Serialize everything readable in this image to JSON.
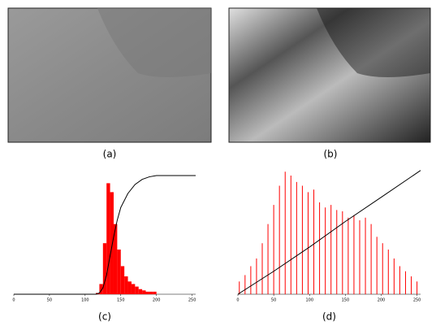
{
  "panels": [
    "(a)",
    "(b)"
  ],
  "chart_data": [
    {
      "type": "histogram",
      "caption": "(c)",
      "color": "#ff0000",
      "bins": [
        115,
        120,
        125,
        130,
        135,
        140,
        145,
        150,
        155,
        160,
        165,
        170,
        175,
        180,
        185,
        190,
        195,
        200
      ],
      "values": [
        1,
        8,
        40,
        87,
        80,
        55,
        35,
        22,
        14,
        10,
        8,
        6,
        4,
        3,
        2,
        2,
        2
      ],
      "xlim": [
        0,
        255
      ],
      "ylim": [
        0,
        100
      ],
      "xticks": [
        0,
        50,
        100,
        150,
        200,
        250
      ],
      "cumulative": {
        "color": "#000000",
        "x": [
          0,
          115,
          120,
          125,
          130,
          135,
          140,
          145,
          150,
          160,
          170,
          180,
          190,
          200,
          255
        ],
        "values": [
          0,
          0,
          1,
          5,
          15,
          30,
          45,
          58,
          68,
          79,
          86,
          90,
          92,
          93,
          93
        ]
      }
    },
    {
      "type": "spikes",
      "caption": "(d)",
      "color": "#ff0000",
      "x": [
        2,
        10,
        18,
        26,
        34,
        42,
        50,
        58,
        66,
        74,
        82,
        90,
        98,
        106,
        114,
        122,
        130,
        138,
        146,
        154,
        162,
        170,
        178,
        186,
        194,
        202,
        210,
        218,
        226,
        234,
        242,
        250
      ],
      "values": [
        10,
        15,
        22,
        28,
        40,
        55,
        70,
        85,
        96,
        93,
        88,
        85,
        80,
        82,
        72,
        68,
        70,
        66,
        65,
        60,
        62,
        58,
        60,
        55,
        45,
        40,
        35,
        28,
        22,
        18,
        14,
        10
      ],
      "xlim": [
        0,
        255
      ],
      "ylim": [
        0,
        100
      ],
      "xticks": [
        0,
        50,
        100,
        150,
        200,
        250
      ],
      "cumulative": {
        "color": "#000000",
        "x": [
          0,
          50,
          100,
          150,
          200,
          255
        ],
        "values": [
          0,
          18,
          37,
          57,
          76,
          97
        ]
      }
    }
  ]
}
